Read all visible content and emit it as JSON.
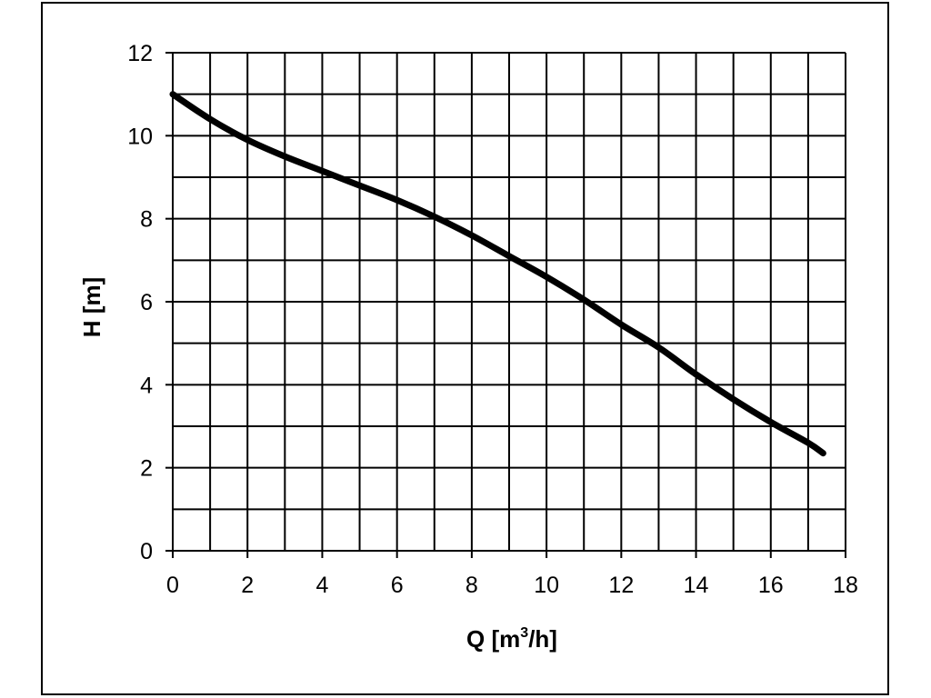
{
  "chart_data": {
    "type": "line",
    "xlabel": "Q [m³/h]",
    "xlabel_parts": {
      "base": "Q [m",
      "sup": "3",
      "tail": "/h]"
    },
    "ylabel": "H [m]",
    "xlim": [
      0,
      18
    ],
    "ylim": [
      0,
      12
    ],
    "x_major_step": 2,
    "y_major_step": 2,
    "x_ticks": [
      "0",
      "2",
      "4",
      "6",
      "8",
      "10",
      "12",
      "14",
      "16",
      "18"
    ],
    "y_ticks": [
      "0",
      "2",
      "4",
      "6",
      "8",
      "10",
      "12"
    ],
    "grid": true,
    "grid_step_x": 1,
    "grid_step_y": 1,
    "legend": "none",
    "line_color": "#000000",
    "series": [
      {
        "x": [
          0,
          1,
          2,
          3,
          4,
          5,
          6,
          7,
          8,
          9,
          10,
          11,
          12,
          13,
          14,
          15,
          16,
          17,
          17.4
        ],
        "y": [
          11.0,
          10.4,
          9.9,
          9.5,
          9.15,
          8.8,
          8.45,
          8.05,
          7.6,
          7.1,
          6.6,
          6.05,
          5.45,
          4.9,
          4.25,
          3.65,
          3.1,
          2.6,
          2.35
        ]
      }
    ]
  }
}
